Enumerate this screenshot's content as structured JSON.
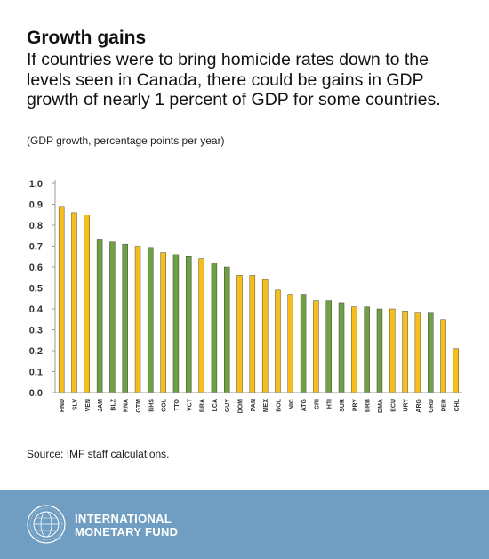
{
  "header": {
    "title": "Growth gains",
    "subtitle": "If countries were to bring homicide rates down to the levels seen in Canada, there could be gains in GDP growth of nearly 1 percent of GDP for some countries.",
    "units": "(GDP growth, percentage points per year)"
  },
  "source": "Source: IMF staff calculations.",
  "footer": {
    "org_line1": "INTERNATIONAL",
    "org_line2": "MONETARY FUND",
    "seal_text": "INTERNATIONAL MONETARY FUND",
    "background_color": "#6f9ec2"
  },
  "chart_data": {
    "type": "bar",
    "categories": [
      "HND",
      "SLV",
      "VEN",
      "JAM",
      "BLZ",
      "KNA",
      "GTM",
      "BHS",
      "COL",
      "TTO",
      "VCT",
      "BRA",
      "LCA",
      "GUY",
      "DOM",
      "PAN",
      "MEX",
      "BOL",
      "NIC",
      "ATG",
      "CRI",
      "HTI",
      "SUR",
      "PRY",
      "BRB",
      "DMA",
      "ECU",
      "URY",
      "ARG",
      "GRD",
      "PER",
      "CHL"
    ],
    "values": [
      0.89,
      0.86,
      0.85,
      0.73,
      0.72,
      0.71,
      0.7,
      0.69,
      0.67,
      0.66,
      0.65,
      0.64,
      0.62,
      0.6,
      0.56,
      0.56,
      0.54,
      0.49,
      0.47,
      0.47,
      0.44,
      0.44,
      0.43,
      0.41,
      0.41,
      0.4,
      0.4,
      0.39,
      0.38,
      0.38,
      0.35,
      0.21
    ],
    "bar_colors": [
      "yellow",
      "yellow",
      "yellow",
      "green",
      "green",
      "green",
      "yellow",
      "green",
      "yellow",
      "green",
      "green",
      "yellow",
      "green",
      "green",
      "yellow",
      "yellow",
      "yellow",
      "yellow",
      "yellow",
      "green",
      "yellow",
      "green",
      "green",
      "yellow",
      "green",
      "green",
      "yellow",
      "yellow",
      "yellow",
      "green",
      "yellow",
      "yellow"
    ],
    "palette": {
      "yellow": "#f5be1d",
      "green": "#6fa044",
      "outline": "#2a2a2a"
    },
    "yticks": [
      "0.0",
      "0.1",
      "0.2",
      "0.3",
      "0.4",
      "0.5",
      "0.6",
      "0.7",
      "0.8",
      "0.9",
      "1.0"
    ],
    "ylim": [
      0,
      1.0
    ],
    "grid": false,
    "legend": "none"
  }
}
